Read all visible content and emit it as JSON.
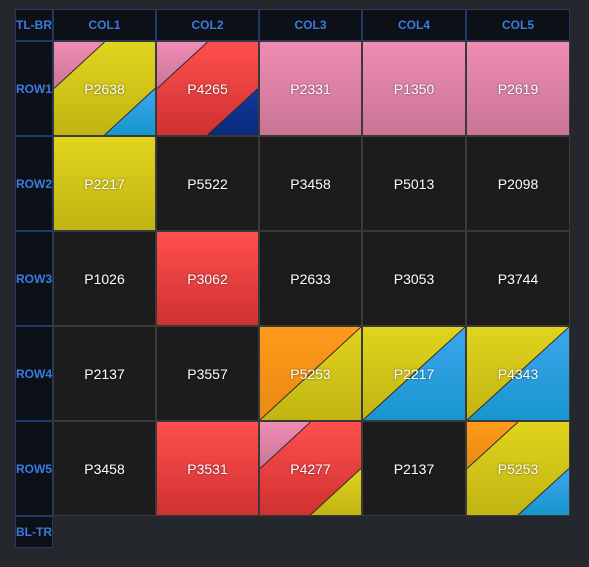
{
  "corners": {
    "top_left": "TL-BR",
    "bottom_left": "BL-TR"
  },
  "columns": [
    "COL1",
    "COL2",
    "COL3",
    "COL4",
    "COL5"
  ],
  "rows": [
    "ROW1",
    "ROW2",
    "ROW3",
    "ROW4",
    "ROW5"
  ],
  "palette": {
    "pink": [
      "#f08cb4",
      "#c87596"
    ],
    "yellow": [
      "#e1d41d",
      "#c1b413"
    ],
    "blue": [
      "#3ea5ef",
      "#1796cc"
    ],
    "red": [
      "#ff4f4f",
      "#cf3131"
    ],
    "navy": [
      "#12399e",
      "#0a2a7a"
    ],
    "orange": [
      "#ff9a1c",
      "#e88a12"
    ],
    "black": [
      "#1c1c1c",
      "#1c1c1c"
    ]
  },
  "cells": [
    [
      {
        "label": "P2638",
        "colors": [
          "pink",
          "yellow",
          "blue"
        ]
      },
      {
        "label": "P4265",
        "colors": [
          "pink",
          "red",
          "navy"
        ]
      },
      {
        "label": "P2331",
        "colors": [
          "pink"
        ]
      },
      {
        "label": "P1350",
        "colors": [
          "pink"
        ]
      },
      {
        "label": "P2619",
        "colors": [
          "pink"
        ]
      }
    ],
    [
      {
        "label": "P2217",
        "colors": [
          "yellow"
        ]
      },
      {
        "label": "P5522",
        "colors": [
          "black"
        ]
      },
      {
        "label": "P3458",
        "colors": [
          "black"
        ]
      },
      {
        "label": "P5013",
        "colors": [
          "black"
        ]
      },
      {
        "label": "P2098",
        "colors": [
          "black"
        ]
      }
    ],
    [
      {
        "label": "P1026",
        "colors": [
          "black"
        ]
      },
      {
        "label": "P3062",
        "colors": [
          "red"
        ]
      },
      {
        "label": "P2633",
        "colors": [
          "black"
        ]
      },
      {
        "label": "P3053",
        "colors": [
          "black"
        ]
      },
      {
        "label": "P3744",
        "colors": [
          "black"
        ]
      }
    ],
    [
      {
        "label": "P2137",
        "colors": [
          "black"
        ]
      },
      {
        "label": "P3557",
        "colors": [
          "black"
        ]
      },
      {
        "label": "P5253",
        "colors": [
          "orange",
          "yellow"
        ]
      },
      {
        "label": "P2217",
        "colors": [
          "yellow",
          "blue"
        ]
      },
      {
        "label": "P4343",
        "colors": [
          "yellow",
          "blue"
        ]
      }
    ],
    [
      {
        "label": "P3458",
        "colors": [
          "black"
        ]
      },
      {
        "label": "P3531",
        "colors": [
          "red"
        ]
      },
      {
        "label": "P4277",
        "colors": [
          "pink",
          "red",
          "yellow"
        ]
      },
      {
        "label": "P2137",
        "colors": [
          "black"
        ]
      },
      {
        "label": "P5253",
        "colors": [
          "orange",
          "yellow",
          "blue"
        ]
      }
    ]
  ]
}
